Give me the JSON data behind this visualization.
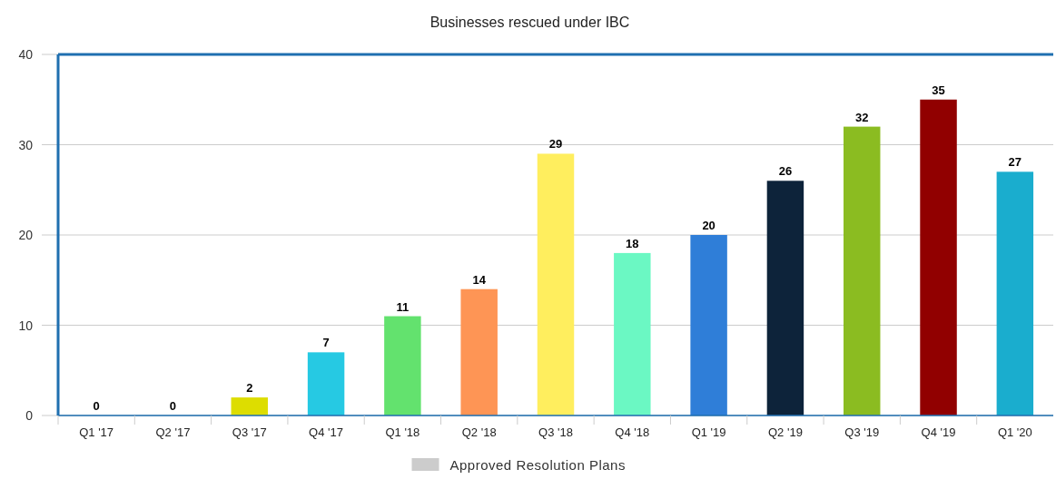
{
  "chart_data": {
    "type": "bar",
    "title": "Businesses rescued under IBC",
    "categories": [
      "Q1 '17",
      "Q2 '17",
      "Q3 '17",
      "Q4 '17",
      "Q1 '18",
      "Q2 '18",
      "Q3 '18",
      "Q4 '18",
      "Q1 '19",
      "Q2 '19",
      "Q3 '19",
      "Q4 '19",
      "Q1 '20"
    ],
    "series": [
      {
        "name": "Approved Resolution Plans",
        "color": "#cccccc",
        "values": [
          0,
          0,
          2,
          7,
          11,
          14,
          29,
          18,
          20,
          26,
          32,
          35,
          27
        ],
        "colors": [
          "#dddd00",
          "#dddd00",
          "#dddd00",
          "#26c9e3",
          "#63e26e",
          "#fe9555",
          "#ffee5e",
          "#6bf8c3",
          "#2f7ed8",
          "#0d233a",
          "#8bbc21",
          "#910000",
          "#1aadce"
        ]
      }
    ],
    "ylim": [
      0,
      40
    ],
    "yticks": [
      0,
      10,
      20,
      30,
      40
    ],
    "grid": "y",
    "legend": "bottom",
    "data_labels": true
  }
}
